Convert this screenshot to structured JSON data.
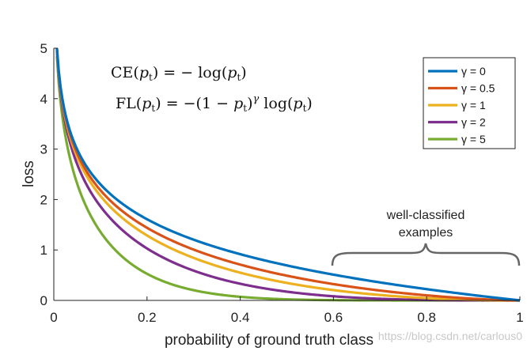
{
  "chart_data": {
    "type": "line",
    "xlabel": "probability of ground truth class",
    "ylabel": "loss",
    "xlim": [
      0,
      1
    ],
    "ylim": [
      0,
      5
    ],
    "xticks": [
      "0",
      "0.2",
      "0.4",
      "0.6",
      "0.8",
      "1"
    ],
    "yticks": [
      "0",
      "1",
      "2",
      "3",
      "4",
      "5"
    ],
    "legend_position": "top-right",
    "grid": false,
    "equations": [
      "CE(p_t) = − log(p_t)",
      "FL(p_t) = −(1 − p_t)^γ log(p_t)"
    ],
    "annotation": {
      "lines": [
        "well-classified",
        "examples"
      ],
      "x_range": [
        0.6,
        1.0
      ]
    },
    "x": [
      0.0067,
      0.02,
      0.05,
      0.1,
      0.15,
      0.2,
      0.3,
      0.4,
      0.5,
      0.6,
      0.7,
      0.8,
      0.9,
      1.0
    ],
    "series": [
      {
        "name": "γ = 0",
        "gamma": 0,
        "color": "#0072BD",
        "values": [
          5.0,
          3.91,
          3.0,
          2.3,
          1.9,
          1.61,
          1.2,
          0.92,
          0.69,
          0.51,
          0.36,
          0.22,
          0.11,
          0.0
        ]
      },
      {
        "name": "γ = 0.5",
        "gamma": 0.5,
        "color": "#D95319",
        "values": [
          4.98,
          3.87,
          2.92,
          2.18,
          1.75,
          1.44,
          1.01,
          0.71,
          0.49,
          0.32,
          0.2,
          0.1,
          0.03,
          0.0
        ]
      },
      {
        "name": "γ = 1",
        "gamma": 1,
        "color": "#EDB120",
        "values": [
          4.97,
          3.83,
          2.85,
          2.07,
          1.61,
          1.29,
          0.84,
          0.55,
          0.35,
          0.2,
          0.11,
          0.04,
          0.01,
          0.0
        ]
      },
      {
        "name": "γ = 2",
        "gamma": 2,
        "color": "#7E2F8E",
        "values": [
          4.93,
          3.76,
          2.71,
          1.87,
          1.37,
          1.03,
          0.59,
          0.33,
          0.17,
          0.08,
          0.03,
          0.01,
          0.0,
          0.0
        ]
      },
      {
        "name": "γ = 5",
        "gamma": 5,
        "color": "#77AC30",
        "values": [
          4.83,
          3.54,
          2.32,
          1.36,
          0.84,
          0.53,
          0.2,
          0.07,
          0.02,
          0.01,
          0.0,
          0.0,
          0.0,
          0.0
        ]
      }
    ]
  },
  "watermark": "https://blog.csdn.net/carlous0"
}
